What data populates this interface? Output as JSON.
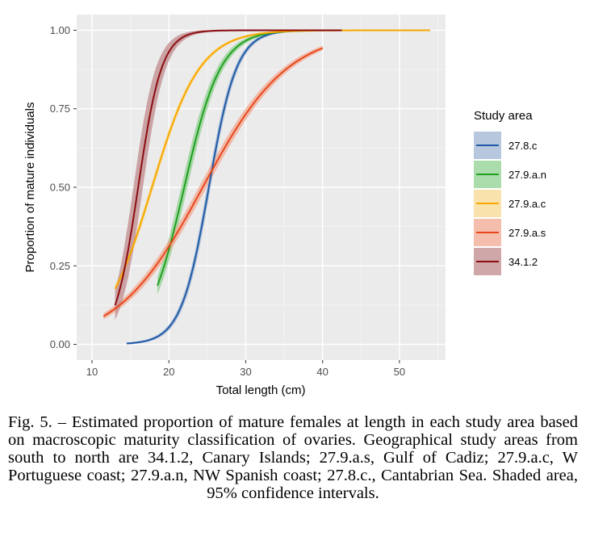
{
  "chart_data": {
    "type": "line",
    "xlabel": "Total length (cm)",
    "ylabel": "Proportion of mature individuals",
    "xlim": [
      8,
      56
    ],
    "ylim": [
      -0.05,
      1.05
    ],
    "x_ticks": [
      10,
      20,
      30,
      40,
      50
    ],
    "y_ticks": [
      0.0,
      0.25,
      0.5,
      0.75,
      1.0
    ],
    "y_tick_labels": [
      "0.00",
      "0.25",
      "0.50",
      "0.75",
      "1.00"
    ],
    "grid": true,
    "legend_title": "Study area",
    "legend_position": "right",
    "series": [
      {
        "name": "27.8.c",
        "color": "#1f5aa6",
        "fill": "#9fb6d3",
        "x_range": [
          14.5,
          42
        ],
        "l50": 25.2,
        "k": 0.55,
        "ci": 0.03
      },
      {
        "name": "27.9.a.n",
        "color": "#1fa01f",
        "fill": "#8fd08f",
        "x_range": [
          18.5,
          38
        ],
        "l50": 22.0,
        "k": 0.42,
        "ci": 0.04
      },
      {
        "name": "27.9.a.c",
        "color": "#f6a800",
        "fill": "#f8d890",
        "x_range": [
          13,
          54
        ],
        "l50": 17.8,
        "k": 0.32,
        "ci": 0.015
      },
      {
        "name": "27.9.a.s",
        "color": "#e8471c",
        "fill": "#f2a890",
        "x_range": [
          11.5,
          40
        ],
        "l50": 24.4,
        "k": 0.18,
        "ci": 0.02
      },
      {
        "name": "34.1.2",
        "color": "#8b0e12",
        "fill": "#c08a8c",
        "x_range": [
          13,
          42.5
        ],
        "l50": 16.0,
        "k": 0.65,
        "ci": 0.1
      }
    ]
  },
  "caption": "Fig. 5. – Estimated proportion of mature females at length in each study area based on macroscopic maturity classification of ovaries. Geographical study areas from south to north are 34.1.2, Canary Islands; 27.9.a.s, Gulf of Cadiz; 27.9.a.c, W Portuguese coast; 27.9.a.n, NW Spanish coast; 27.8.c., Cantabrian Sea. Shaded area, 95% confidence intervals."
}
